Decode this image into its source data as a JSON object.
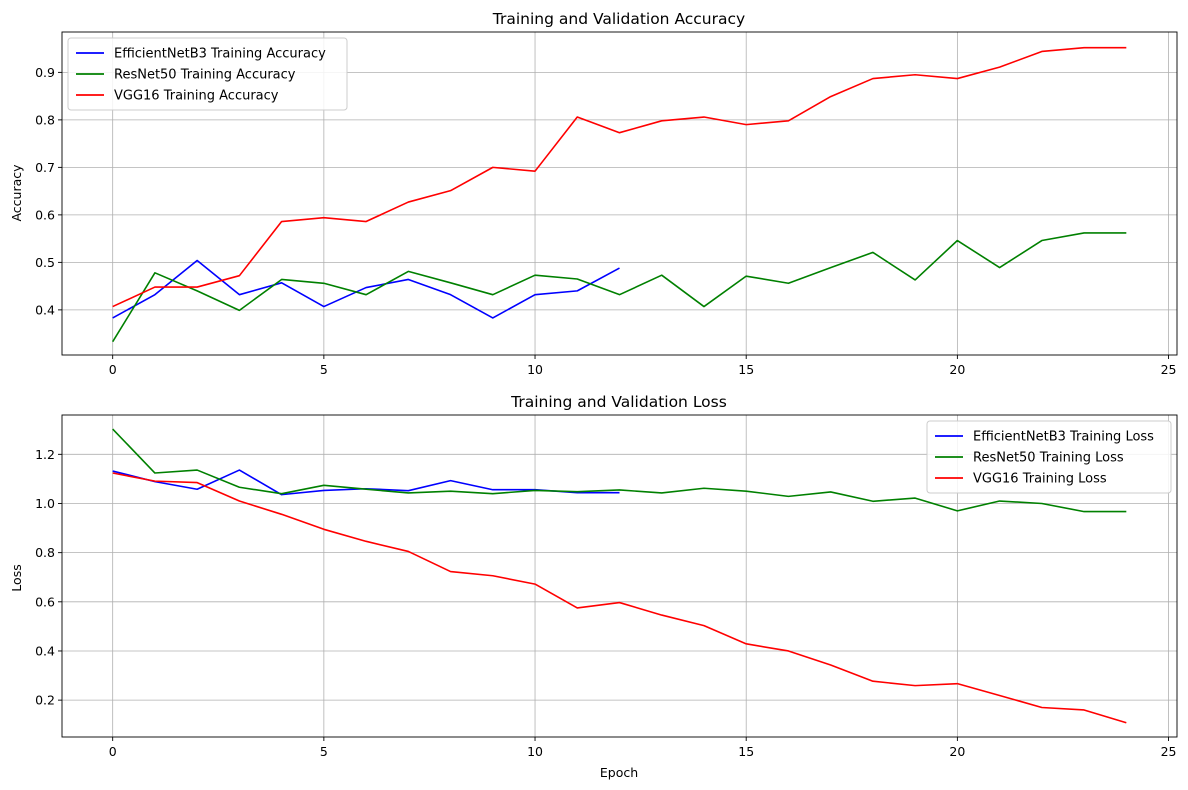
{
  "chart_data": [
    {
      "type": "line",
      "title": "Training and Validation Accuracy",
      "xlabel": "",
      "ylabel": "Accuracy",
      "xlim": [
        -1.2,
        25.2
      ],
      "ylim": [
        0.305,
        0.985
      ],
      "xticks": [
        "0",
        "5",
        "10",
        "15",
        "20",
        "25"
      ],
      "xtick_values": [
        0,
        5,
        10,
        15,
        20,
        25
      ],
      "yticks": [
        "0.4",
        "0.5",
        "0.6",
        "0.7",
        "0.8",
        "0.9"
      ],
      "ytick_values": [
        0.4,
        0.5,
        0.6,
        0.7,
        0.8,
        0.9
      ],
      "grid": true,
      "legend_position": "top-left",
      "series": [
        {
          "name": "EfficientNetB3 Training Accuracy",
          "color": "#0000ff",
          "x": [
            0,
            1,
            2,
            3,
            4,
            5,
            6,
            7,
            8,
            9,
            10,
            11,
            12
          ],
          "values": [
            0.383,
            0.432,
            0.504,
            0.432,
            0.457,
            0.407,
            0.447,
            0.464,
            0.432,
            0.383,
            0.432,
            0.44,
            0.488
          ]
        },
        {
          "name": "ResNet50 Training Accuracy",
          "color": "#008000",
          "x": [
            0,
            1,
            2,
            3,
            4,
            5,
            6,
            7,
            8,
            9,
            10,
            11,
            12,
            13,
            14,
            15,
            16,
            17,
            18,
            19,
            20,
            21,
            22,
            23,
            24
          ],
          "values": [
            0.333,
            0.478,
            0.44,
            0.399,
            0.464,
            0.456,
            0.432,
            0.481,
            0.457,
            0.432,
            0.473,
            0.465,
            0.432,
            0.473,
            0.407,
            0.471,
            0.456,
            0.489,
            0.521,
            0.463,
            0.546,
            0.489,
            0.546,
            0.562,
            0.562
          ]
        },
        {
          "name": "VGG16 Training Accuracy",
          "color": "#ff0000",
          "x": [
            0,
            1,
            2,
            3,
            4,
            5,
            6,
            7,
            8,
            9,
            10,
            11,
            12,
            13,
            14,
            15,
            16,
            17,
            18,
            19,
            20,
            21,
            22,
            23,
            24
          ],
          "values": [
            0.407,
            0.448,
            0.448,
            0.472,
            0.586,
            0.594,
            0.586,
            0.627,
            0.651,
            0.7,
            0.692,
            0.806,
            0.773,
            0.798,
            0.806,
            0.79,
            0.798,
            0.849,
            0.887,
            0.895,
            0.887,
            0.911,
            0.944,
            0.952,
            0.952
          ]
        }
      ]
    },
    {
      "type": "line",
      "title": "Training and Validation Loss",
      "xlabel": "Epoch",
      "ylabel": "Loss",
      "xlim": [
        -1.2,
        25.2
      ],
      "ylim": [
        0.05,
        1.36
      ],
      "xticks": [
        "0",
        "5",
        "10",
        "15",
        "20",
        "25"
      ],
      "xtick_values": [
        0,
        5,
        10,
        15,
        20,
        25
      ],
      "yticks": [
        "0.2",
        "0.4",
        "0.6",
        "0.8",
        "1.0",
        "1.2"
      ],
      "ytick_values": [
        0.2,
        0.4,
        0.6,
        0.8,
        1.0,
        1.2
      ],
      "grid": true,
      "legend_position": "top-right",
      "series": [
        {
          "name": "EfficientNetB3 Training Loss",
          "color": "#0000ff",
          "x": [
            0,
            1,
            2,
            3,
            4,
            5,
            6,
            7,
            8,
            9,
            10,
            11,
            12
          ],
          "values": [
            1.132,
            1.089,
            1.058,
            1.136,
            1.036,
            1.053,
            1.06,
            1.052,
            1.093,
            1.056,
            1.056,
            1.044,
            1.044
          ]
        },
        {
          "name": "ResNet50 Training Loss",
          "color": "#008000",
          "x": [
            0,
            1,
            2,
            3,
            4,
            5,
            6,
            7,
            8,
            9,
            10,
            11,
            12,
            13,
            14,
            15,
            16,
            17,
            18,
            19,
            20,
            21,
            22,
            23,
            24
          ],
          "values": [
            1.303,
            1.124,
            1.136,
            1.066,
            1.04,
            1.074,
            1.058,
            1.043,
            1.05,
            1.04,
            1.053,
            1.048,
            1.055,
            1.043,
            1.062,
            1.05,
            1.029,
            1.047,
            1.009,
            1.022,
            0.97,
            1.01,
            1.0,
            0.967,
            0.967
          ]
        },
        {
          "name": "VGG16 Training Loss",
          "color": "#ff0000",
          "x": [
            0,
            1,
            2,
            3,
            4,
            5,
            6,
            7,
            8,
            9,
            10,
            11,
            12,
            13,
            14,
            15,
            16,
            17,
            18,
            19,
            20,
            21,
            22,
            23,
            24
          ],
          "values": [
            1.124,
            1.091,
            1.085,
            1.01,
            0.956,
            0.895,
            0.846,
            0.805,
            0.723,
            0.706,
            0.672,
            0.575,
            0.597,
            0.546,
            0.503,
            0.429,
            0.4,
            0.343,
            0.277,
            0.259,
            0.267,
            0.219,
            0.17,
            0.16,
            0.108
          ]
        }
      ]
    }
  ]
}
